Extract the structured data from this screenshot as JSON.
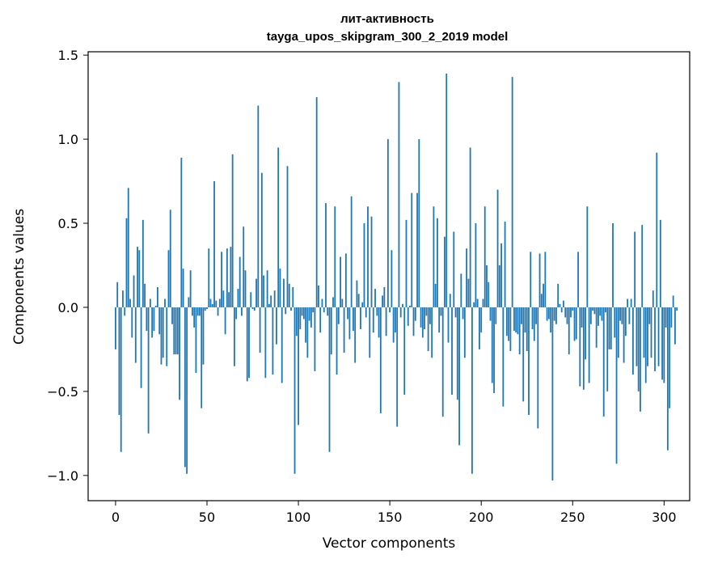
{
  "chart_data": {
    "type": "bar",
    "title": "лит-активность",
    "subtitle": "tayga_upos_skipgram_300_2_2019 model",
    "xlabel": "Vector components",
    "ylabel": "Components values",
    "xlim": [
      -15,
      314
    ],
    "ylim": [
      -1.15,
      1.52
    ],
    "xticks": [
      0,
      50,
      100,
      150,
      200,
      250,
      300
    ],
    "yticks": [
      -1.0,
      -0.5,
      0.0,
      0.5,
      1.0,
      1.5
    ],
    "xtick_labels": [
      "0",
      "50",
      "100",
      "150",
      "200",
      "250",
      "300"
    ],
    "ytick_labels": [
      "−1.0",
      "−0.5",
      "0.0",
      "0.5",
      "1.0",
      "1.5"
    ],
    "grid": false,
    "bar_color": "#1f77b4",
    "values": [
      -0.25,
      0.15,
      -0.64,
      -0.86,
      0.1,
      -0.05,
      0.53,
      0.71,
      0.05,
      -0.18,
      0.19,
      -0.33,
      0.36,
      0.34,
      -0.48,
      0.52,
      0.14,
      -0.14,
      -0.75,
      0.05,
      -0.18,
      -0.14,
      0.01,
      0.12,
      -0.16,
      -0.34,
      -0.3,
      0.05,
      -0.35,
      0.34,
      0.58,
      -0.1,
      -0.28,
      -0.28,
      -0.28,
      -0.55,
      0.89,
      0.23,
      -0.95,
      -0.99,
      0.06,
      0.22,
      -0.05,
      -0.12,
      -0.39,
      -0.05,
      -0.05,
      -0.6,
      -0.34,
      -0.02,
      -0.01,
      0.35,
      0.05,
      0.02,
      0.75,
      0.04,
      -0.05,
      0.05,
      0.33,
      0.1,
      -0.16,
      0.35,
      0.09,
      0.36,
      0.91,
      -0.35,
      -0.07,
      0.11,
      0.3,
      -0.05,
      0.48,
      0.22,
      -0.44,
      -0.42,
      0.09,
      -0.01,
      -0.02,
      0.17,
      1.2,
      -0.27,
      0.8,
      0.19,
      -0.42,
      0.22,
      0.02,
      0.07,
      -0.4,
      0.1,
      -0.22,
      0.95,
      0.23,
      -0.45,
      0.17,
      -0.04,
      0.84,
      0.14,
      -0.02,
      0.12,
      -0.99,
      -0.17,
      -0.7,
      -0.13,
      -0.05,
      -0.07,
      -0.21,
      -0.3,
      -0.08,
      -0.12,
      -0.03,
      -0.38,
      1.25,
      0.13,
      -0.15,
      0.05,
      -0.03,
      0.62,
      -0.05,
      -0.86,
      -0.28,
      0.06,
      0.6,
      -0.4,
      -0.1,
      0.3,
      0.05,
      -0.27,
      0.32,
      -0.07,
      -0.19,
      0.66,
      -0.14,
      -0.33,
      0.16,
      0.08,
      -0.13,
      0.03,
      0.5,
      -0.06,
      0.6,
      -0.3,
      0.54,
      -0.15,
      0.11,
      -0.05,
      -0.18,
      -0.63,
      0.07,
      0.12,
      -0.17,
      1.0,
      -0.03,
      0.34,
      -0.21,
      -0.15,
      -0.71,
      1.34,
      -0.06,
      0.02,
      -0.52,
      0.52,
      -0.11,
      0.01,
      0.68,
      -0.17,
      -0.08,
      0.68,
      1.0,
      -0.12,
      -0.18,
      -0.13,
      -0.05,
      -0.26,
      -0.1,
      -0.3,
      0.6,
      0.14,
      0.53,
      -0.15,
      -0.05,
      -0.65,
      0.42,
      1.39,
      -0.21,
      0.08,
      -0.52,
      0.45,
      -0.06,
      -0.55,
      -0.82,
      0.2,
      -0.07,
      -0.3,
      0.35,
      0.17,
      0.95,
      -0.99,
      0.03,
      0.5,
      0.05,
      -0.25,
      -0.15,
      0.05,
      0.6,
      0.25,
      0.15,
      -0.08,
      -0.45,
      -0.51,
      -0.1,
      0.7,
      0.25,
      0.38,
      -0.59,
      0.51,
      -0.17,
      -0.2,
      -0.26,
      1.37,
      -0.14,
      -0.15,
      -0.16,
      -0.28,
      -0.1,
      -0.56,
      -0.15,
      -0.26,
      -0.64,
      0.33,
      -0.13,
      -0.2,
      -0.1,
      -0.72,
      0.32,
      0.08,
      0.14,
      0.33,
      -0.08,
      -0.07,
      -0.15,
      -1.03,
      -0.08,
      -0.1,
      0.14,
      0.02,
      -0.03,
      0.04,
      -0.06,
      -0.1,
      -0.28,
      -0.06,
      -0.02,
      -0.2,
      -0.19,
      0.33,
      -0.47,
      -0.12,
      -0.49,
      -0.31,
      0.6,
      -0.45,
      -0.1,
      -0.02,
      -0.04,
      -0.24,
      -0.11,
      -0.05,
      -0.08,
      -0.65,
      -0.03,
      -0.5,
      -0.25,
      -0.25,
      0.5,
      -0.18,
      -0.93,
      -0.3,
      -0.08,
      -0.1,
      -0.33,
      -0.17,
      0.05,
      -0.1,
      0.05,
      -0.4,
      0.45,
      -0.35,
      -0.5,
      -0.62,
      0.49,
      -0.3,
      -0.45,
      -0.35,
      -0.1,
      -0.3,
      0.1,
      -0.38,
      0.92,
      -0.35,
      0.52,
      -0.43,
      -0.45,
      -0.12,
      -0.85,
      -0.6,
      -0.12,
      0.07,
      -0.22,
      -0.02
    ]
  }
}
